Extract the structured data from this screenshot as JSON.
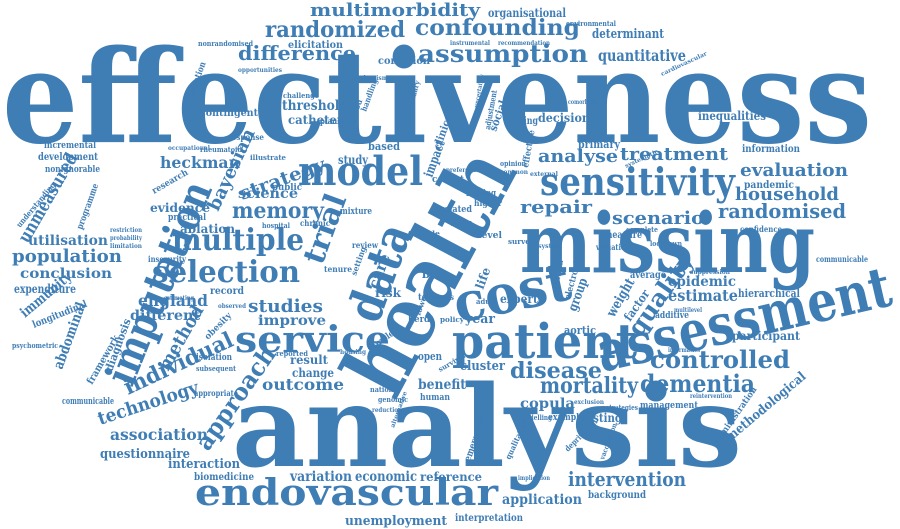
{
  "cloud": {
    "color": "#3f7db5",
    "color_dark": "#35699b",
    "words": [
      "effectiveness",
      "analysis",
      "health",
      "missing",
      "assessment",
      "imputation",
      "patient",
      "cost",
      "sensitivity",
      "model",
      "endovascular",
      "data",
      "service",
      "multiple",
      "selection",
      "confounding",
      "assumption",
      "randomized",
      "multimorbidity",
      "difference",
      "trial",
      "approach",
      "memory",
      "individual",
      "controlled",
      "dementia",
      "mortality",
      "intervention",
      "disease",
      "quality",
      "strategy",
      "treatment",
      "randomised",
      "household",
      "evaluation",
      "scenario",
      "analyse",
      "repair",
      "bayesian",
      "heckman",
      "population",
      "england",
      "different",
      "conclusion",
      "method",
      "technology",
      "association",
      "outcome",
      "studies",
      "improve",
      "science",
      "evidence",
      "ablation",
      "unmeasured",
      "utilisation",
      "immunity",
      "abdominal",
      "expenditure",
      "longitudinal",
      "framework",
      "diagnosis",
      "questionnaire",
      "interaction",
      "biomedicine",
      "variation",
      "economic",
      "unemployment",
      "interpretation",
      "application",
      "background",
      "reference",
      "copula",
      "cluster",
      "benefit",
      "result",
      "change",
      "estimate",
      "epidemic",
      "participant",
      "hierarchical",
      "methodological",
      "administration",
      "management",
      "quantitative",
      "determinant",
      "organisational",
      "threshold",
      "catheter",
      "elicitation",
      "inequalities",
      "information",
      "pandemic",
      "confidence",
      "contingent",
      "development",
      "nonignorable",
      "incremental",
      "programme",
      "understanding",
      "practical",
      "public",
      "record",
      "primary",
      "cohort",
      "decision",
      "condition",
      "based",
      "study",
      "related",
      "expert",
      "year",
      "level",
      "risk",
      "group",
      "weight",
      "factor",
      "aortic",
      "open",
      "testing",
      "example",
      "human",
      "emergency",
      "electronic",
      "average",
      "communicable",
      "additive",
      "suppression",
      "cardiovascular",
      "environmental",
      "organisation",
      "nonrandomised",
      "opportunities",
      "recommendation",
      "instrumental",
      "mechanism",
      "challenge",
      "occupational",
      "rheumatoid",
      "response",
      "illustrate",
      "research",
      "insecurity",
      "isolation",
      "subsequent",
      "appropriate",
      "obesity",
      "reported",
      "psychometric",
      "lockdown",
      "measure",
      "valuation",
      "complete",
      "systematic",
      "survey",
      "mixture",
      "plausible",
      "handling",
      "likelihood",
      "clinical",
      "impact",
      "social",
      "effective",
      "secondary",
      "bias",
      "sample",
      "care",
      "life",
      "survival",
      "cross",
      "informatics",
      "multilevel",
      "reintervention",
      "vaccination",
      "deprivation",
      "qualitative",
      "modelling",
      "implication",
      "strategies",
      "exclusion",
      "national",
      "genomic",
      "alternative",
      "communicable",
      "pattern",
      "uncertainty",
      "adjustment",
      "tracing",
      "comorbidity",
      "restriction",
      "probability",
      "limitation",
      "hospital",
      "tenure",
      "review",
      "setting",
      "term",
      "herd",
      "lower",
      "policy",
      "housing",
      "chronic",
      "scale",
      "making",
      "higher",
      "valued",
      "opinion",
      "external",
      "common",
      "system",
      "preference",
      "adult",
      "reduction",
      "estimating",
      "observed"
    ]
  }
}
